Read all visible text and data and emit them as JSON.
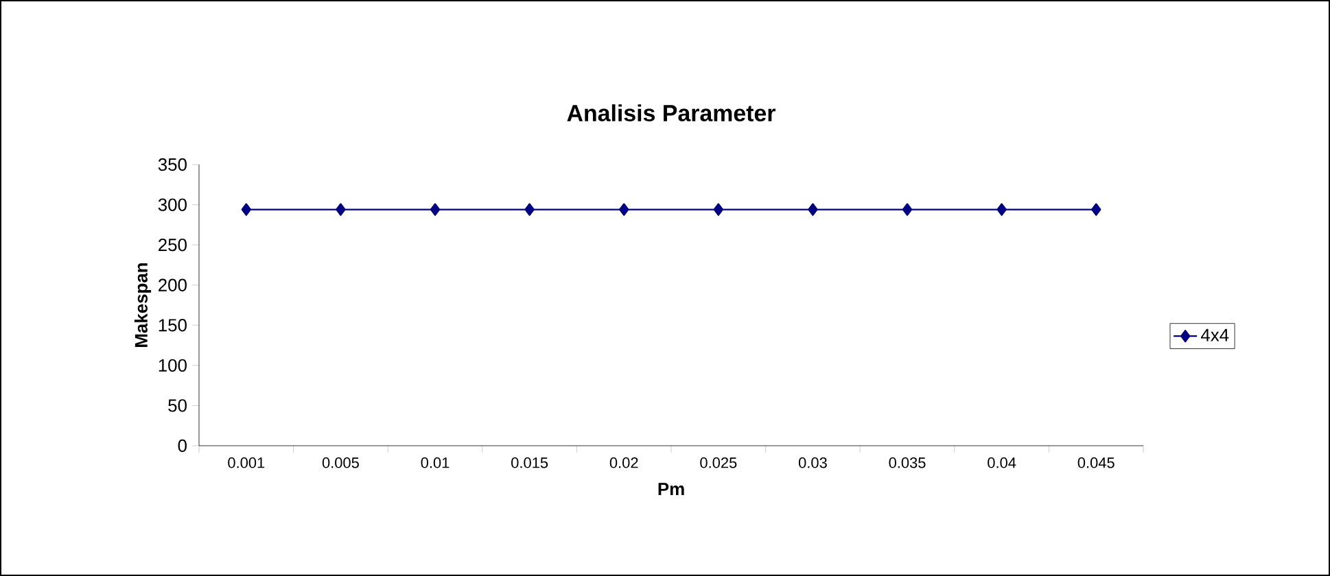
{
  "chart_data": {
    "type": "line",
    "title": "Analisis Parameter",
    "xlabel": "Pm",
    "ylabel": "Makespan",
    "categories": [
      "0.001",
      "0.005",
      "0.01",
      "0.015",
      "0.02",
      "0.025",
      "0.03",
      "0.035",
      "0.04",
      "0.045"
    ],
    "series": [
      {
        "name": "4x4",
        "color": "#000080",
        "values": [
          294,
          294,
          294,
          294,
          294,
          294,
          294,
          294,
          294,
          294
        ]
      }
    ],
    "ylim": [
      0,
      350
    ],
    "yticks": [
      0,
      50,
      100,
      150,
      200,
      250,
      300,
      350
    ],
    "grid": false,
    "legend": "right",
    "marker": "diamond",
    "line_style": "solid"
  }
}
